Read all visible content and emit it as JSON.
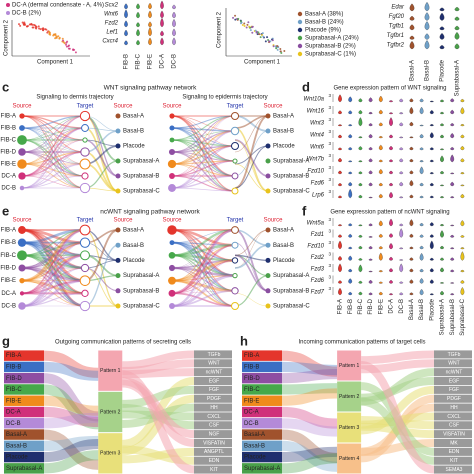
{
  "top": {
    "left_legend": [
      "DC-A (dermal condensate - A, 4%)",
      "DC-B (2%)"
    ],
    "left_y": "Component 2",
    "left_x": "Component 1",
    "left_genes": [
      "Scx2",
      "Wnt6",
      "Fzd2",
      "Lef1",
      "Cxcr4"
    ],
    "left_groups": [
      "FIB-B",
      "FIB-C",
      "FIB-E",
      "DC-A",
      "DC-B"
    ],
    "mid_y": "Component 2",
    "mid_x": "Component 1",
    "mid_legend": [
      "Basal-A (38%)",
      "Basal-B (24%)",
      "Placode (9%)",
      "Suprabasal-A (24%)",
      "Suprabasal-B (2%)",
      "Suprabasal-C (1%)"
    ],
    "right_genes": [
      "Edar",
      "Fgf20",
      "Tgfb1",
      "Tgfbr1",
      "Tgfbr2"
    ],
    "right_groups": [
      "Basal-A",
      "Basal-B",
      "Placode",
      "Suprabasal-A"
    ]
  },
  "dermis_cells": [
    "FIB-A",
    "FIB-B",
    "FIB-C",
    "FIB-D",
    "FIB-E",
    "DC-A",
    "DC-B"
  ],
  "dermis_colors": [
    "#e4352c",
    "#3b6fc4",
    "#46a84a",
    "#8e4ea2",
    "#f08a1c",
    "#d0307a",
    "#b48ad8"
  ],
  "epidermis_cells": [
    "Basal-A",
    "Basal-B",
    "Placode",
    "Suprabasal-A",
    "Suprabasal-B",
    "Suprabasal-C"
  ],
  "epidermis_colors": [
    "#a0522d",
    "#6fa0c8",
    "#1f2f6e",
    "#4aa04a",
    "#8a4ea0",
    "#e8c31c"
  ],
  "c": {
    "letter": "c",
    "title": "WNT signaling pathway network",
    "left_title": "Signaling to dermis trajectory",
    "right_title": "Signaling to epidermis trajectory",
    "source": "Source",
    "target": "Target"
  },
  "e": {
    "letter": "e",
    "title": "ncWNT signaling pathway network",
    "source": "Source",
    "target": "Target"
  },
  "d": {
    "letter": "d",
    "title": "Gene expression pattern of WNT signaling",
    "genes": [
      "Wnt10a",
      "Wnt16",
      "Wnt3",
      "Wnt4",
      "Wnt6",
      "Wnt7b",
      "Fzd10",
      "Fzd6",
      "Lrp6"
    ],
    "scale_label": "3"
  },
  "f": {
    "letter": "f",
    "title": "Gene expression pattern of ncWNT signaling",
    "genes": [
      "Wnt5a",
      "Fzd1",
      "Fzd10",
      "Fzd2",
      "Fzd3",
      "Fzd6",
      "Fzd7"
    ],
    "scale_label": "3"
  },
  "g": {
    "letter": "g",
    "title": "Outgoing communication patterns of secreting cells",
    "cells": [
      "FIB-A",
      "FIB-B",
      "FIB-D",
      "FIB-C",
      "FIB-E",
      "DC-A",
      "DC-B",
      "Basal-A",
      "Basal-B",
      "Placode",
      "Suprabasal-A"
    ],
    "patterns": [
      "Pattern 1",
      "Pattern 2",
      "Pattern 3"
    ],
    "pathways": [
      "TGFb",
      "WNT",
      "ncWNT",
      "EGF",
      "FGF",
      "PDGF",
      "HH",
      "CXCL",
      "CSF",
      "NGF",
      "VISFATIN",
      "ANGPTL",
      "EDN",
      "KIT"
    ]
  },
  "h": {
    "letter": "h",
    "title": "Incoming communication patterns of target cells",
    "cells": [
      "FIB-A",
      "FIB-B",
      "FIB-D",
      "FIB-C",
      "FIB-E",
      "DC-A",
      "DC-B",
      "Basal-A",
      "Basal-B",
      "Placode",
      "Suprabasal-A"
    ],
    "patterns": [
      "Pattern 1",
      "Pattern 2",
      "Pattern 3",
      "Pattern 4"
    ],
    "pathways": [
      "TGFb",
      "WNT",
      "ncWNT",
      "EGF",
      "FGF",
      "PDGF",
      "HH",
      "CXCL",
      "CSF",
      "VISFATIN",
      "MK",
      "EDN",
      "KIT",
      "SEMA3"
    ]
  }
}
